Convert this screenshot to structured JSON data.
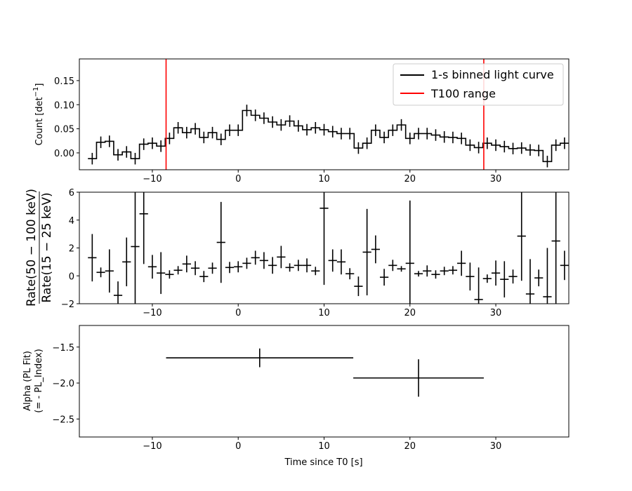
{
  "chart_data": [
    {
      "type": "line",
      "panel": "light-curve",
      "ylabel_main": "Count [det",
      "ylabel_sup": "−1",
      "ylabel_end": "]",
      "xlim": [
        -18.5,
        38.5
      ],
      "ylim": [
        -0.035,
        0.195
      ],
      "yticks": [
        0.0,
        0.05,
        0.1,
        0.15
      ],
      "ytick_labels": [
        "0.00",
        "0.05",
        "0.10",
        "0.15"
      ],
      "xticks": [
        -10,
        0,
        10,
        20,
        30
      ],
      "xtick_labels": [
        "−10",
        "0",
        "10",
        "20",
        "30"
      ],
      "legend": {
        "placement": "top-right",
        "entries": [
          {
            "label": "1-s binned light curve",
            "color": "#000000"
          },
          {
            "label": "T100 range",
            "color": "#ff0000"
          }
        ]
      },
      "t100_range": [
        -8.4,
        28.6
      ],
      "bin_width": 1,
      "series": [
        {
          "name": "1-s binned light curve",
          "x": [
            -17,
            -16,
            -15,
            -14,
            -13,
            -12,
            -11,
            -10,
            -9,
            -8,
            -7,
            -6,
            -5,
            -4,
            -3,
            -2,
            -1,
            0,
            1,
            2,
            3,
            4,
            5,
            6,
            7,
            8,
            9,
            10,
            11,
            12,
            13,
            14,
            15,
            16,
            17,
            18,
            19,
            20,
            21,
            22,
            23,
            24,
            25,
            26,
            27,
            28,
            29,
            30,
            31,
            32,
            33,
            34,
            35,
            36,
            37,
            38
          ],
          "y": [
            -0.012,
            0.022,
            0.024,
            -0.004,
            0.002,
            -0.012,
            0.018,
            0.02,
            0.014,
            0.03,
            0.052,
            0.042,
            0.05,
            0.032,
            0.042,
            0.028,
            0.047,
            0.047,
            0.088,
            0.078,
            0.072,
            0.064,
            0.058,
            0.066,
            0.056,
            0.048,
            0.052,
            0.048,
            0.044,
            0.04,
            0.04,
            0.01,
            0.02,
            0.047,
            0.032,
            0.047,
            0.058,
            0.03,
            0.04,
            0.04,
            0.037,
            0.033,
            0.032,
            0.03,
            0.016,
            0.011,
            0.02,
            0.016,
            0.013,
            0.009,
            0.01,
            0.006,
            0.005,
            -0.018,
            0.016,
            0.02
          ],
          "yerr": 0.012
        }
      ]
    },
    {
      "type": "scatter",
      "panel": "hardness-ratio",
      "ylabel_num": "Rate(50 − 100 keV)",
      "ylabel_den": "Rate(15 − 25 keV)",
      "xlim": [
        -18.5,
        38.5
      ],
      "ylim": [
        -2,
        6
      ],
      "yticks": [
        -2,
        0,
        2,
        4,
        6
      ],
      "ytick_labels": [
        "−2",
        "0",
        "2",
        "4",
        "6"
      ],
      "xticks": [
        -10,
        0,
        10,
        20,
        30
      ],
      "xtick_labels": [
        "−10",
        "0",
        "10",
        "20",
        "30"
      ],
      "series": [
        {
          "name": "",
          "x": [
            -17,
            -16,
            -15,
            -14,
            -13,
            -12,
            -11,
            -10,
            -9,
            -8,
            -7,
            -6,
            -5,
            -4,
            -3,
            -2,
            -1,
            0,
            1,
            2,
            3,
            4,
            5,
            6,
            7,
            8,
            9,
            10,
            11,
            12,
            13,
            14,
            15,
            16,
            17,
            18,
            19,
            20,
            21,
            22,
            23,
            24,
            25,
            26,
            27,
            28,
            29,
            30,
            31,
            32,
            33,
            34,
            35,
            36,
            37,
            38
          ],
          "y": [
            1.3,
            0.25,
            0.35,
            -1.4,
            1.0,
            2.1,
            4.45,
            0.65,
            0.2,
            0.1,
            0.4,
            0.85,
            0.55,
            -0.05,
            0.55,
            2.4,
            0.6,
            0.65,
            0.9,
            1.3,
            1.1,
            0.75,
            1.35,
            0.6,
            0.75,
            0.75,
            0.35,
            4.85,
            1.1,
            1.0,
            0.15,
            -0.75,
            1.7,
            1.9,
            -0.1,
            0.75,
            0.5,
            0.9,
            0.15,
            0.35,
            0.1,
            0.35,
            0.4,
            0.9,
            -0.05,
            -1.7,
            -0.2,
            0.2,
            -0.25,
            -0.05,
            2.85,
            -1.3,
            -0.15,
            -1.5,
            2.5,
            0.75
          ],
          "yerr": [
            1.7,
            0.35,
            1.55,
            1.0,
            1.75,
            4.5,
            3.6,
            0.85,
            1.5,
            0.3,
            0.3,
            0.6,
            0.5,
            0.4,
            0.4,
            2.9,
            0.4,
            0.4,
            0.4,
            0.5,
            0.6,
            0.6,
            0.8,
            0.3,
            0.4,
            0.5,
            0.3,
            5.5,
            0.8,
            0.9,
            0.4,
            0.7,
            3.1,
            1.0,
            0.6,
            0.4,
            0.2,
            4.5,
            0.2,
            0.4,
            0.3,
            0.3,
            0.3,
            0.9,
            1.0,
            2.3,
            0.3,
            0.9,
            1.3,
            0.5,
            3.2,
            2.5,
            0.6,
            3.5,
            5.0,
            1.05
          ]
        }
      ]
    },
    {
      "type": "scatter",
      "panel": "alpha",
      "ylabel_line1": "Alpha (PL Fit)",
      "ylabel_line2": "(= - PL_Index)",
      "xlabel": "Time since T0 [s]",
      "xlim": [
        -18.5,
        38.5
      ],
      "ylim": [
        -2.75,
        -1.2
      ],
      "yticks": [
        -2.5,
        -2.0,
        -1.5
      ],
      "ytick_labels": [
        "−2.5",
        "−2.0",
        "−1.5"
      ],
      "xticks": [
        -10,
        0,
        10,
        20,
        30
      ],
      "xtick_labels": [
        "−10",
        "0",
        "10",
        "20",
        "30"
      ],
      "series": [
        {
          "name": "",
          "x": [
            2.5,
            21.0
          ],
          "xerr_low": [
            10.9,
            7.6
          ],
          "xerr_high": [
            10.9,
            7.6
          ],
          "y": [
            -1.65,
            -1.93
          ],
          "yerr": [
            0.13,
            0.26
          ]
        }
      ]
    }
  ]
}
